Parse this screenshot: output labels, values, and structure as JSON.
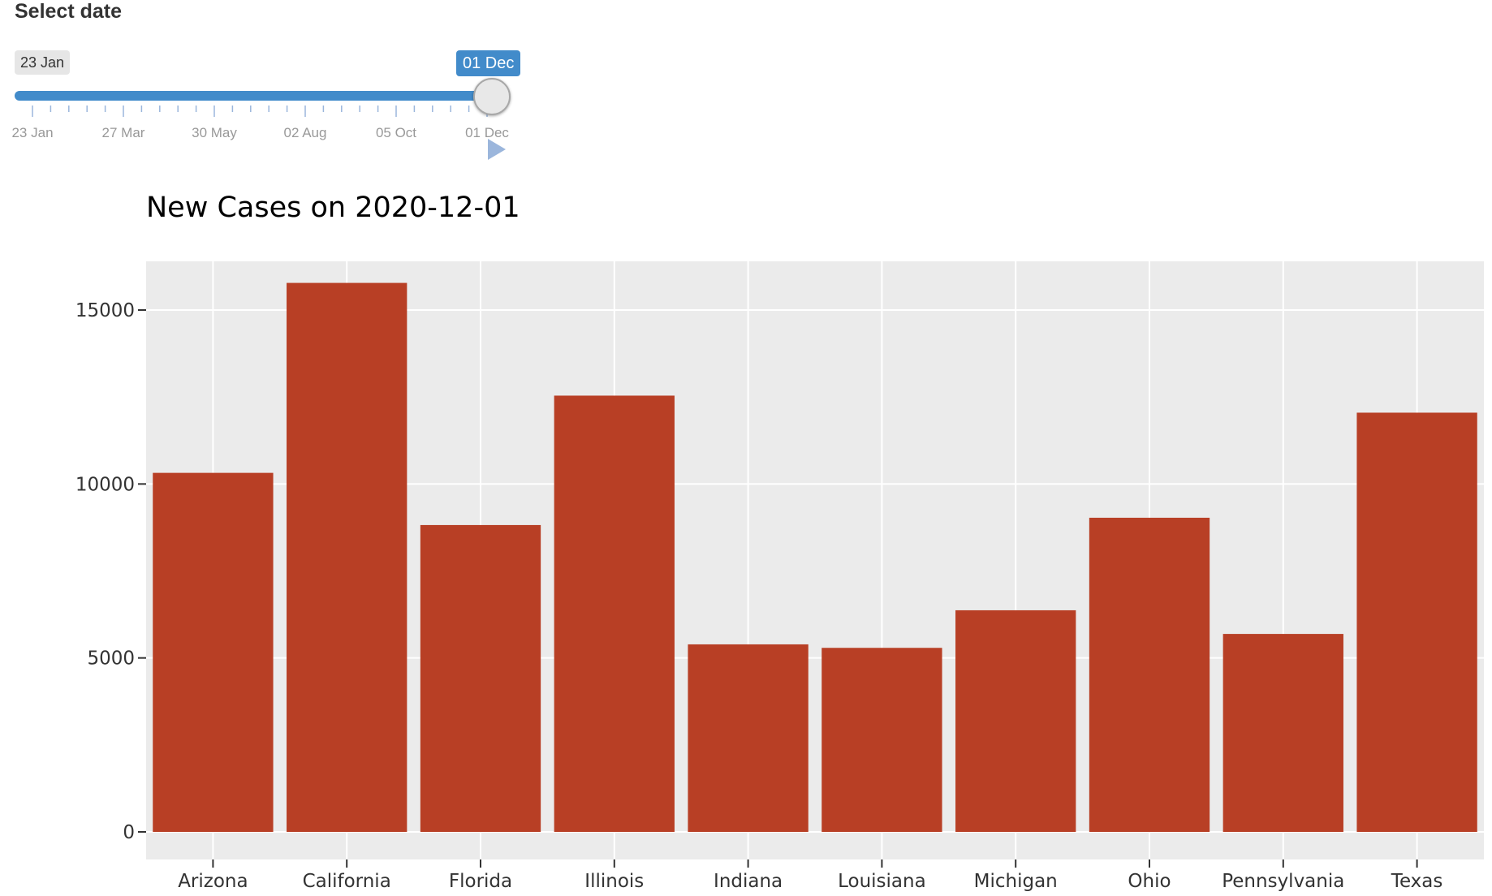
{
  "slider": {
    "label": "Select date",
    "min_label": "23 Jan",
    "current_label": "01 Dec",
    "value_fraction": 1.0,
    "tick_labels": [
      "23 Jan",
      "27 Mar",
      "30 May",
      "02 Aug",
      "05 Oct",
      "01 Dec"
    ],
    "accent_color": "#428bca",
    "play_icon": "play-icon"
  },
  "chart_data": {
    "type": "bar",
    "title": "New Cases on 2020-12-01",
    "xlabel": "",
    "ylabel": "",
    "categories": [
      "Arizona",
      "California",
      "Florida",
      "Illinois",
      "Indiana",
      "Louisiana",
      "Michigan",
      "Ohio",
      "Pennsylvania",
      "Texas"
    ],
    "values": [
      10320,
      15780,
      8820,
      12540,
      5390,
      5290,
      6370,
      9030,
      5690,
      12050
    ],
    "ylim": [
      0,
      16400
    ],
    "yticks": [
      0,
      5000,
      10000,
      15000
    ],
    "grid": true,
    "legend": "none",
    "bar_color": "#b83f25",
    "panel_color": "#ebebeb"
  }
}
